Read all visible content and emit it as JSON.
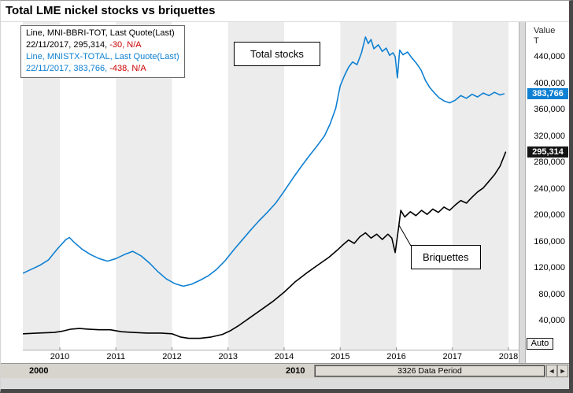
{
  "title": "Total LME nickel stocks vs briquettes",
  "colors": {
    "total_stocks": "#0f80d2",
    "briquettes": "#000000",
    "negative_change": "#cc0000",
    "band_gray": "#ececec",
    "badge_total_bg": "#0f80d2",
    "badge_briquettes_bg": "#141414"
  },
  "legend": {
    "lines": [
      [
        {
          "text": "Line, MNI-BBRI-TOT, Last Quote(Last)",
          "color": "#000000"
        }
      ],
      [
        {
          "text": "22/11/2017, 295,314, ",
          "color": "#000000"
        },
        {
          "text": "-30, N/A",
          "color": "#cc0000"
        }
      ],
      [
        {
          "text": "Line, MNISTX-TOTAL, Last Quote(Last)",
          "color": "#0f80d2"
        }
      ],
      [
        {
          "text": "22/11/2017, 383,766, ",
          "color": "#0f80d2"
        },
        {
          "text": "-438, N/A",
          "color": "#cc0000"
        }
      ]
    ]
  },
  "annotations": {
    "total_stocks": "Total stocks",
    "briquettes": "Briquettes"
  },
  "axis": {
    "value_label": "Value",
    "unit_label": "T",
    "auto_label": "Auto"
  },
  "badges": {
    "total_stocks": "383,766",
    "briquettes": "295,314"
  },
  "navigator": {
    "left_label": "2000",
    "mid_label": "2010",
    "period_label": "3326 Data Period",
    "btn1": "◄",
    "btn2": "►"
  },
  "chart_data": {
    "type": "line",
    "title": "Total LME nickel stocks vs briquettes",
    "xlabel": "",
    "ylabel": "Value (T, tonnes)",
    "ylim": [
      0,
      480000
    ],
    "xlim": [
      2009.34,
      2018.18
    ],
    "grid": false,
    "legend_position": "top-left",
    "xticks": [
      2010,
      2011,
      2012,
      2013,
      2014,
      2015,
      2016,
      2017,
      2018
    ],
    "yticks": [
      440000,
      400000,
      360000,
      320000,
      280000,
      240000,
      200000,
      160000,
      120000,
      80000,
      40000
    ],
    "series": [
      {
        "name": "Total stocks",
        "ric": "MNISTX-TOTAL",
        "color": "#0f80d2",
        "last_date": "22/11/2017",
        "last_value": 383766,
        "change": -438,
        "points": [
          [
            2009.35,
            112000
          ],
          [
            2009.5,
            118000
          ],
          [
            2009.65,
            124000
          ],
          [
            2009.8,
            132000
          ],
          [
            2009.95,
            148000
          ],
          [
            2010.1,
            162000
          ],
          [
            2010.17,
            166000
          ],
          [
            2010.25,
            159000
          ],
          [
            2010.4,
            148000
          ],
          [
            2010.55,
            140000
          ],
          [
            2010.7,
            134000
          ],
          [
            2010.85,
            130000
          ],
          [
            2011.0,
            134000
          ],
          [
            2011.15,
            140000
          ],
          [
            2011.3,
            145000
          ],
          [
            2011.45,
            138000
          ],
          [
            2011.6,
            127000
          ],
          [
            2011.75,
            114000
          ],
          [
            2011.9,
            103000
          ],
          [
            2012.05,
            96000
          ],
          [
            2012.2,
            92000
          ],
          [
            2012.35,
            95000
          ],
          [
            2012.5,
            101000
          ],
          [
            2012.65,
            108000
          ],
          [
            2012.8,
            118000
          ],
          [
            2012.95,
            131000
          ],
          [
            2013.1,
            147000
          ],
          [
            2013.25,
            162000
          ],
          [
            2013.4,
            177000
          ],
          [
            2013.55,
            191000
          ],
          [
            2013.7,
            204000
          ],
          [
            2013.85,
            218000
          ],
          [
            2014.0,
            236000
          ],
          [
            2014.15,
            255000
          ],
          [
            2014.3,
            273000
          ],
          [
            2014.45,
            290000
          ],
          [
            2014.6,
            306000
          ],
          [
            2014.72,
            320000
          ],
          [
            2014.82,
            338000
          ],
          [
            2014.92,
            362000
          ],
          [
            2015.0,
            396000
          ],
          [
            2015.08,
            412000
          ],
          [
            2015.15,
            424000
          ],
          [
            2015.22,
            432000
          ],
          [
            2015.3,
            428000
          ],
          [
            2015.38,
            446000
          ],
          [
            2015.45,
            470000
          ],
          [
            2015.5,
            460000
          ],
          [
            2015.55,
            466000
          ],
          [
            2015.6,
            452000
          ],
          [
            2015.68,
            458000
          ],
          [
            2015.75,
            448000
          ],
          [
            2015.82,
            453000
          ],
          [
            2015.88,
            442000
          ],
          [
            2015.94,
            446000
          ],
          [
            2015.98,
            440000
          ],
          [
            2016.02,
            408000
          ],
          [
            2016.06,
            450000
          ],
          [
            2016.12,
            443000
          ],
          [
            2016.2,
            447000
          ],
          [
            2016.28,
            438000
          ],
          [
            2016.36,
            430000
          ],
          [
            2016.44,
            420000
          ],
          [
            2016.52,
            404000
          ],
          [
            2016.6,
            393000
          ],
          [
            2016.68,
            385000
          ],
          [
            2016.76,
            378000
          ],
          [
            2016.85,
            373000
          ],
          [
            2016.95,
            370000
          ],
          [
            2017.05,
            374000
          ],
          [
            2017.15,
            381000
          ],
          [
            2017.25,
            377000
          ],
          [
            2017.35,
            383000
          ],
          [
            2017.45,
            379000
          ],
          [
            2017.55,
            385000
          ],
          [
            2017.65,
            381000
          ],
          [
            2017.75,
            386000
          ],
          [
            2017.85,
            382000
          ],
          [
            2017.92,
            383766
          ]
        ]
      },
      {
        "name": "Briquettes",
        "ric": "MNI-BBRI-TOT",
        "color": "#000000",
        "last_date": "22/11/2017",
        "last_value": 295314,
        "change": -30,
        "points": [
          [
            2009.35,
            20000
          ],
          [
            2009.6,
            21000
          ],
          [
            2009.9,
            22000
          ],
          [
            2010.05,
            24000
          ],
          [
            2010.2,
            27000
          ],
          [
            2010.35,
            28000
          ],
          [
            2010.5,
            27000
          ],
          [
            2010.7,
            26000
          ],
          [
            2010.9,
            26000
          ],
          [
            2011.1,
            23000
          ],
          [
            2011.3,
            22000
          ],
          [
            2011.55,
            21000
          ],
          [
            2011.8,
            21000
          ],
          [
            2012.0,
            20000
          ],
          [
            2012.15,
            15000
          ],
          [
            2012.3,
            13000
          ],
          [
            2012.5,
            13000
          ],
          [
            2012.7,
            15000
          ],
          [
            2012.9,
            19000
          ],
          [
            2013.05,
            25000
          ],
          [
            2013.2,
            33000
          ],
          [
            2013.4,
            45000
          ],
          [
            2013.6,
            57000
          ],
          [
            2013.8,
            69000
          ],
          [
            2014.0,
            83000
          ],
          [
            2014.2,
            99000
          ],
          [
            2014.4,
            112000
          ],
          [
            2014.6,
            124000
          ],
          [
            2014.8,
            136000
          ],
          [
            2014.95,
            147000
          ],
          [
            2015.05,
            155000
          ],
          [
            2015.15,
            162000
          ],
          [
            2015.25,
            157000
          ],
          [
            2015.35,
            167000
          ],
          [
            2015.45,
            173000
          ],
          [
            2015.55,
            165000
          ],
          [
            2015.65,
            171000
          ],
          [
            2015.75,
            163000
          ],
          [
            2015.85,
            171000
          ],
          [
            2015.92,
            165000
          ],
          [
            2015.98,
            143000
          ],
          [
            2016.04,
            180000
          ],
          [
            2016.08,
            207000
          ],
          [
            2016.15,
            197000
          ],
          [
            2016.25,
            205000
          ],
          [
            2016.35,
            199000
          ],
          [
            2016.45,
            207000
          ],
          [
            2016.55,
            201000
          ],
          [
            2016.65,
            209000
          ],
          [
            2016.75,
            204000
          ],
          [
            2016.85,
            212000
          ],
          [
            2016.95,
            207000
          ],
          [
            2017.05,
            215000
          ],
          [
            2017.15,
            222000
          ],
          [
            2017.25,
            218000
          ],
          [
            2017.35,
            227000
          ],
          [
            2017.45,
            235000
          ],
          [
            2017.55,
            241000
          ],
          [
            2017.65,
            251000
          ],
          [
            2017.75,
            261000
          ],
          [
            2017.85,
            274000
          ],
          [
            2017.95,
            295314
          ]
        ]
      }
    ]
  }
}
